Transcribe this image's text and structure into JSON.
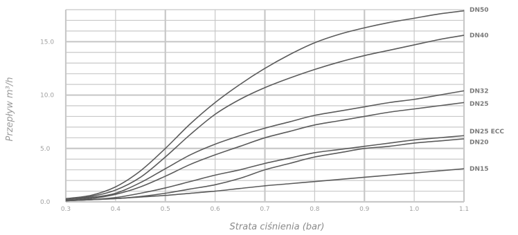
{
  "chart_data": {
    "type": "line",
    "xlabel": "Strata ciśnienia (bar)",
    "ylabel": "Przepływ m³/h",
    "xlim": [
      0.3,
      1.1
    ],
    "ylim": [
      0,
      18
    ],
    "grid": true,
    "legend": "right (inline series labels)",
    "colors": {
      "line": "#5a5a5a",
      "grid": "#c8c8c8",
      "label": "#7a7a7a",
      "axis_title": "#9a9a9a"
    },
    "x_ticks": [
      "0.3",
      "0.4",
      "0.5",
      "0.6",
      "0.7",
      "0.8",
      "0.9",
      "1.0",
      "1.1"
    ],
    "y_ticks": [
      "0.0",
      "5.0",
      "10.0",
      "15.0"
    ],
    "series": [
      {
        "name": "DN50",
        "x": [
          0.3,
          0.35,
          0.4,
          0.45,
          0.5,
          0.55,
          0.6,
          0.65,
          0.7,
          0.75,
          0.8,
          0.85,
          0.9,
          0.95,
          1.0,
          1.05,
          1.1
        ],
        "y": [
          0.3,
          0.6,
          1.4,
          2.9,
          5.0,
          7.3,
          9.3,
          11.0,
          12.5,
          13.8,
          14.9,
          15.7,
          16.3,
          16.8,
          17.2,
          17.6,
          17.9
        ]
      },
      {
        "name": "DN40",
        "x": [
          0.3,
          0.35,
          0.4,
          0.45,
          0.5,
          0.55,
          0.6,
          0.65,
          0.7,
          0.75,
          0.8,
          0.85,
          0.9,
          0.95,
          1.0,
          1.05,
          1.1
        ],
        "y": [
          0.2,
          0.5,
          1.1,
          2.3,
          4.2,
          6.3,
          8.2,
          9.6,
          10.7,
          11.6,
          12.4,
          13.1,
          13.7,
          14.2,
          14.7,
          15.2,
          15.6
        ]
      },
      {
        "name": "DN32",
        "x": [
          0.3,
          0.35,
          0.4,
          0.45,
          0.5,
          0.55,
          0.6,
          0.65,
          0.7,
          0.75,
          0.8,
          0.85,
          0.9,
          0.95,
          1.0,
          1.05,
          1.1
        ],
        "y": [
          0.2,
          0.4,
          0.8,
          1.8,
          3.1,
          4.4,
          5.4,
          6.2,
          6.9,
          7.5,
          8.1,
          8.5,
          8.9,
          9.3,
          9.6,
          10.0,
          10.4
        ]
      },
      {
        "name": "DN25",
        "x": [
          0.3,
          0.35,
          0.4,
          0.45,
          0.5,
          0.55,
          0.6,
          0.65,
          0.7,
          0.75,
          0.8,
          0.85,
          0.9,
          0.95,
          1.0,
          1.05,
          1.1
        ],
        "y": [
          0.1,
          0.3,
          0.7,
          1.4,
          2.4,
          3.5,
          4.4,
          5.2,
          6.0,
          6.6,
          7.2,
          7.6,
          8.0,
          8.4,
          8.7,
          9.0,
          9.3
        ]
      },
      {
        "name": "DN25 ECC",
        "x": [
          0.3,
          0.35,
          0.4,
          0.45,
          0.5,
          0.55,
          0.6,
          0.65,
          0.7,
          0.75,
          0.8,
          0.85,
          0.9,
          0.95,
          1.0,
          1.05,
          1.1
        ],
        "y": [
          0.1,
          0.2,
          0.4,
          0.8,
          1.3,
          1.9,
          2.5,
          3.0,
          3.6,
          4.1,
          4.6,
          4.9,
          5.2,
          5.5,
          5.8,
          6.0,
          6.2
        ]
      },
      {
        "name": "DN20",
        "x": [
          0.3,
          0.35,
          0.4,
          0.45,
          0.5,
          0.55,
          0.6,
          0.65,
          0.7,
          0.75,
          0.8,
          0.85,
          0.9,
          0.95,
          1.0,
          1.05,
          1.1
        ],
        "y": [
          0.1,
          0.2,
          0.3,
          0.5,
          0.8,
          1.2,
          1.6,
          2.2,
          3.0,
          3.6,
          4.2,
          4.6,
          5.0,
          5.2,
          5.5,
          5.7,
          5.9
        ]
      },
      {
        "name": "DN15",
        "x": [
          0.3,
          0.35,
          0.4,
          0.45,
          0.5,
          0.55,
          0.6,
          0.65,
          0.7,
          0.75,
          0.8,
          0.85,
          0.9,
          0.95,
          1.0,
          1.05,
          1.1
        ],
        "y": [
          0.1,
          0.2,
          0.3,
          0.45,
          0.6,
          0.8,
          1.0,
          1.25,
          1.5,
          1.7,
          1.9,
          2.1,
          2.3,
          2.5,
          2.7,
          2.9,
          3.1
        ]
      }
    ]
  }
}
